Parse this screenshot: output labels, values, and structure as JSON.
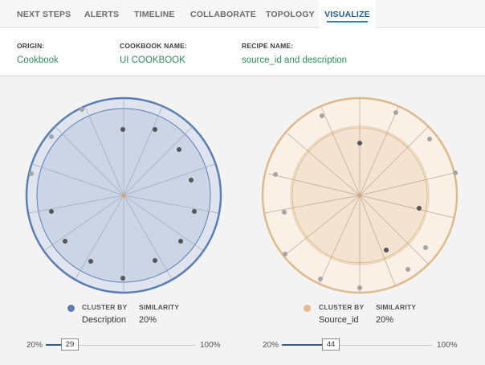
{
  "tabs": [
    {
      "label": "NEXT STEPS",
      "active": false
    },
    {
      "label": "ALERTS",
      "active": false
    },
    {
      "label": "TIMELINE",
      "active": false
    },
    {
      "label": "COLLABORATE",
      "active": false
    },
    {
      "label": "TOPOLOGY",
      "active": false
    },
    {
      "label": "VISUALIZE",
      "active": true
    }
  ],
  "meta": {
    "origin": {
      "label": "ORIGIN:",
      "value": "Cookbook"
    },
    "cookbook": {
      "label": "COOKBOOK NAME:",
      "value": "UI COOKBOOK"
    },
    "recipe": {
      "label": "RECIPE NAME:",
      "value": "source_id and description"
    }
  },
  "charts": [
    {
      "cluster_by_label": "CLUSTER BY",
      "cluster_by_value": "Description",
      "similarity_label": "SIMILARITY",
      "similarity_value": "20%",
      "slider": {
        "min": "20%",
        "max": "100%",
        "value": "29",
        "fraction": 0.11
      },
      "colors": {
        "outer_fill": "#dfe4ef",
        "outer_stroke": "#5b7db5",
        "inner_fill": "#cbd5e6",
        "inner_stroke": "#5b7db5",
        "legend": "#5b7db5",
        "spoke": "#9ea8b8"
      }
    },
    {
      "cluster_by_label": "CLUSTER BY",
      "cluster_by_value": "Source_id",
      "similarity_label": "SIMILARITY",
      "similarity_value": "20%",
      "slider": {
        "min": "20%",
        "max": "100%",
        "value": "44",
        "fraction": 0.3
      },
      "colors": {
        "outer_fill": "#faf0e6",
        "outer_stroke": "#deb98c",
        "inner_fill": "#f3e3d0",
        "inner_stroke": "#deb98c",
        "legend": "#e8b88c",
        "spoke": "#b9a793"
      }
    }
  ],
  "colors": {
    "accent": "#1f5f8b",
    "meta_value": "#2f8a5a",
    "slider_fill": "#2a5c8f"
  }
}
